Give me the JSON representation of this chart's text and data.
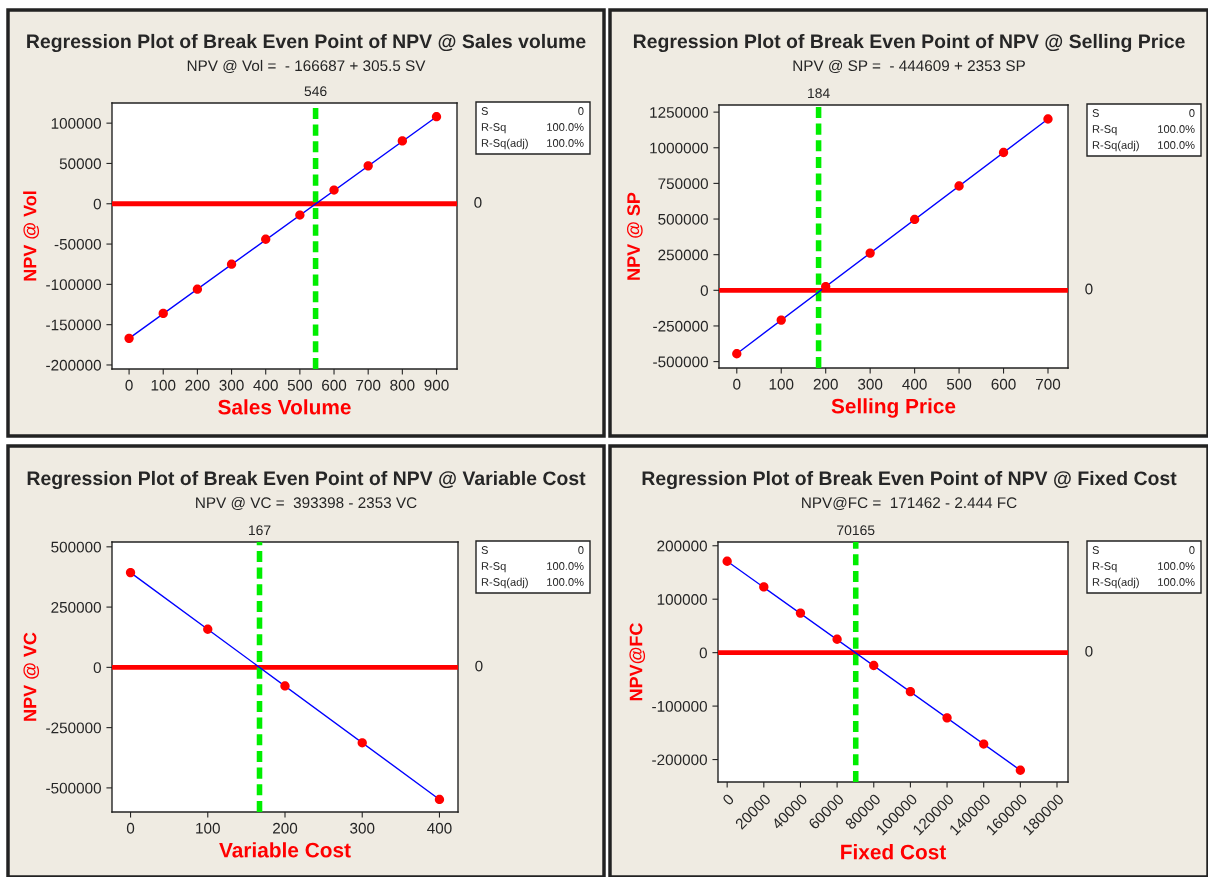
{
  "chart_data": [
    {
      "type": "scatter",
      "title": "Regression Plot of Break Even Point of NPV @ Sales volume",
      "subtitle": "NPV @ Vol =  - 166687 + 305.5 SV",
      "xlabel": "Sales Volume",
      "ylabel": "NPV @ Vol",
      "marker": "circle",
      "grid": false,
      "legend": false,
      "x": [
        0,
        100,
        200,
        300,
        400,
        500,
        600,
        700,
        800,
        900
      ],
      "series": [
        {
          "color": "#ff0000",
          "values": [
            -167000,
            -136000,
            -106000,
            -75000,
            -44000,
            -14000,
            17000,
            47000,
            78000,
            108000
          ]
        },
        {
          "type": "line",
          "color": "#0000ff",
          "x": [
            0,
            900
          ],
          "values": [
            -167000,
            108000
          ],
          "marker": "none"
        }
      ],
      "xlim": [
        -50,
        960
      ],
      "xticks": [
        0,
        100,
        200,
        300,
        400,
        500,
        600,
        700,
        800,
        900
      ],
      "ylim": [
        -205000,
        125000
      ],
      "yticks": [
        -200000,
        -150000,
        -100000,
        -50000,
        0,
        50000,
        100000
      ],
      "ref_lines": [
        {
          "axis": "y",
          "value": 0,
          "label": "0",
          "color": "#ff0000",
          "line_style": "solid"
        },
        {
          "axis": "x",
          "value": 546,
          "label": "546",
          "color": "#00ee00",
          "line_style": "dashed"
        }
      ],
      "annotations": [
        "S",
        "0",
        "R-Sq",
        "100.0%",
        "R-Sq(adj)",
        "100.0%"
      ]
    },
    {
      "type": "scatter",
      "title": "Regression Plot of Break Even Point of NPV @ Selling Price",
      "subtitle": "NPV @ SP =  - 444609 + 2353 SP",
      "xlabel": "Selling Price",
      "ylabel": "NPV @ SP",
      "marker": "circle",
      "grid": false,
      "legend": false,
      "x": [
        0,
        100,
        200,
        300,
        400,
        500,
        600,
        700
      ],
      "series": [
        {
          "color": "#ff0000",
          "values": [
            -445000,
            -209000,
            26000,
            261000,
            497000,
            732000,
            967000,
            1202000
          ]
        },
        {
          "type": "line",
          "color": "#0000ff",
          "x": [
            0,
            700
          ],
          "values": [
            -445000,
            1202000
          ],
          "marker": "none"
        }
      ],
      "xlim": [
        -40,
        745
      ],
      "xticks": [
        0,
        100,
        200,
        300,
        400,
        500,
        600,
        700
      ],
      "ylim": [
        -545000,
        1300000
      ],
      "yticks": [
        -500000,
        -250000,
        0,
        250000,
        500000,
        750000,
        1000000,
        1250000
      ],
      "ref_lines": [
        {
          "axis": "y",
          "value": 0,
          "label": "0",
          "color": "#ff0000",
          "line_style": "solid"
        },
        {
          "axis": "x",
          "value": 184,
          "label": "184",
          "color": "#00ee00",
          "line_style": "dashed"
        }
      ],
      "annotations": [
        "S",
        "0",
        "R-Sq",
        "100.0%",
        "R-Sq(adj)",
        "100.0%"
      ]
    },
    {
      "type": "scatter",
      "title": "Regression Plot of Break Even Point of NPV @ Variable Cost",
      "subtitle": "NPV @ VC =  393398 - 2353 VC",
      "xlabel": "Variable Cost",
      "ylabel": "NPV @ VC",
      "marker": "circle",
      "grid": false,
      "legend": false,
      "x": [
        0,
        100,
        200,
        300,
        400
      ],
      "series": [
        {
          "color": "#ff0000",
          "values": [
            393000,
            158000,
            -77000,
            -313000,
            -548000
          ]
        },
        {
          "type": "line",
          "color": "#0000ff",
          "x": [
            0,
            400
          ],
          "values": [
            393000,
            -548000
          ],
          "marker": "none"
        }
      ],
      "xlim": [
        -24,
        424
      ],
      "xticks": [
        0,
        100,
        200,
        300,
        400
      ],
      "ylim": [
        -600000,
        520000
      ],
      "yticks": [
        -500000,
        -250000,
        0,
        250000,
        500000
      ],
      "ref_lines": [
        {
          "axis": "y",
          "value": 0,
          "label": "0",
          "color": "#ff0000",
          "line_style": "solid"
        },
        {
          "axis": "x",
          "value": 167,
          "label": "167",
          "color": "#00ee00",
          "line_style": "dashed"
        }
      ],
      "annotations": [
        "S",
        "0",
        "R-Sq",
        "100.0%",
        "R-Sq(adj)",
        "100.0%"
      ]
    },
    {
      "type": "scatter",
      "title": "Regression Plot of Break Even Point of NPV @ Fixed Cost",
      "subtitle": "NPV@FC =  171462 - 2.444 FC",
      "xlabel": "Fixed Cost",
      "ylabel": "NPV@FC",
      "marker": "circle",
      "grid": false,
      "legend": false,
      "x": [
        0,
        20000,
        40000,
        60000,
        80000,
        100000,
        120000,
        140000,
        160000
      ],
      "series": [
        {
          "color": "#ff0000",
          "values": [
            171000,
            123000,
            74000,
            25000,
            -24000,
            -73000,
            -122000,
            -171000,
            -220000
          ]
        },
        {
          "type": "line",
          "color": "#0000ff",
          "x": [
            0,
            160000
          ],
          "values": [
            171000,
            -220000
          ],
          "marker": "none"
        }
      ],
      "xlim": [
        -5000,
        186000
      ],
      "xticks": [
        0,
        20000,
        40000,
        60000,
        80000,
        100000,
        120000,
        140000,
        160000,
        180000
      ],
      "ylim": [
        -242000,
        207000
      ],
      "yticks": [
        -200000,
        -100000,
        0,
        100000,
        200000
      ],
      "ref_lines": [
        {
          "axis": "y",
          "value": 0,
          "label": "0",
          "color": "#ff0000",
          "line_style": "solid"
        },
        {
          "axis": "x",
          "value": 70165,
          "label": "70165",
          "color": "#00ee00",
          "line_style": "dashed"
        }
      ],
      "annotations": [
        "S",
        "0",
        "R-Sq",
        "100.0%",
        "R-Sq(adj)",
        "100.0%"
      ]
    }
  ]
}
